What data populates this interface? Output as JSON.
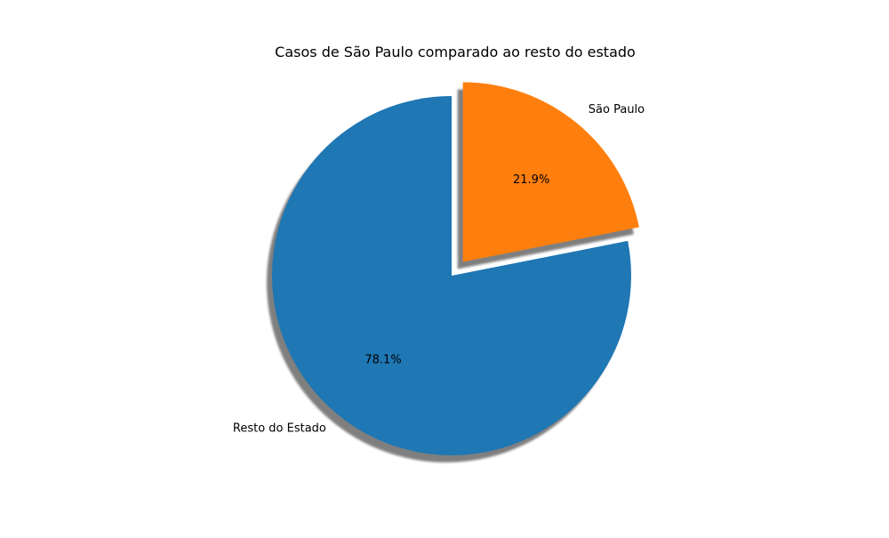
{
  "chart_data": {
    "type": "pie",
    "title": "Casos de São Paulo comparado ao resto do estado",
    "slices": [
      {
        "label": "São Paulo",
        "percent": 21.9,
        "percent_label": "21.9%",
        "color": "#ff7f0e",
        "exploded": true
      },
      {
        "label": "Resto do Estado",
        "percent": 78.1,
        "percent_label": "78.1%",
        "color": "#1f77b4",
        "exploded": false
      }
    ],
    "start_angle_deg": 90,
    "direction": "clockwise",
    "shadow": true
  }
}
